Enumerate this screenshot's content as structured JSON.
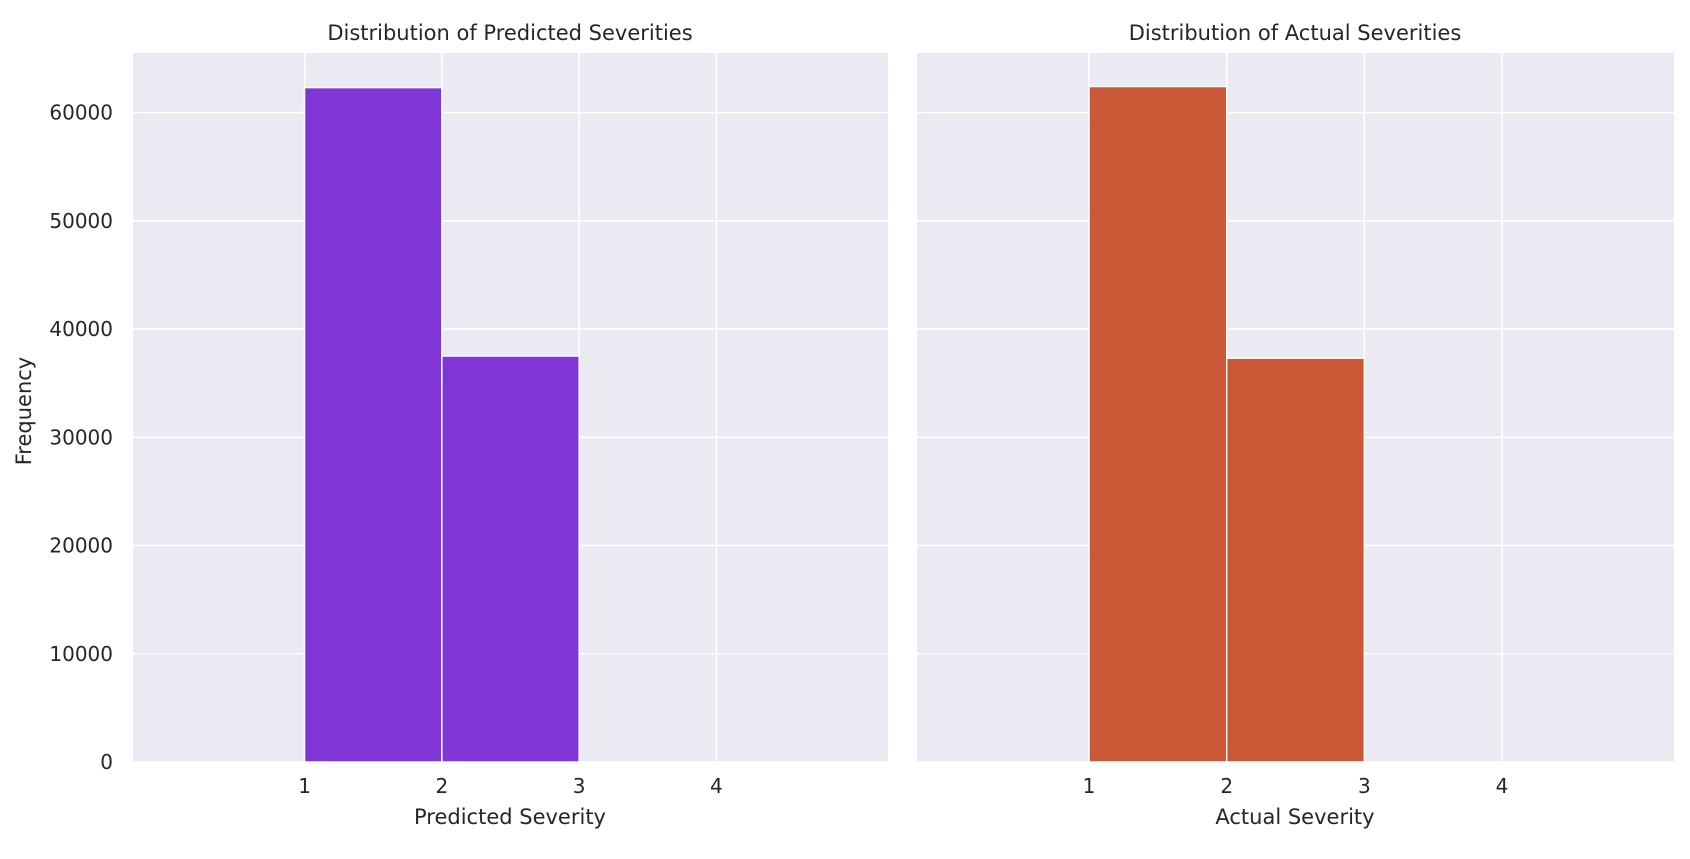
{
  "figure": {
    "ylabel": "Frequency"
  },
  "chart_data": [
    {
      "type": "bar",
      "title": "Distribution of Predicted Severities",
      "xlabel": "Predicted Severity",
      "ylabel": "Frequency",
      "bins": [
        [
          1,
          2
        ],
        [
          2,
          3
        ]
      ],
      "values": [
        62300,
        37500
      ],
      "color": "#7b2fd3",
      "xlim": [
        -0.25,
        5.25
      ],
      "ylim": [
        0,
        65500
      ],
      "xticks": [
        1,
        2,
        3,
        4
      ],
      "yticks": [
        0,
        10000,
        20000,
        30000,
        40000,
        50000,
        60000
      ],
      "grid": true
    },
    {
      "type": "bar",
      "title": "Distribution of Actual Severities",
      "xlabel": "Actual Severity",
      "ylabel": "",
      "bins": [
        [
          1,
          2
        ],
        [
          2,
          3
        ]
      ],
      "values": [
        62400,
        37300
      ],
      "color": "#c9532f",
      "xlim": [
        -0.25,
        5.25
      ],
      "ylim": [
        0,
        65500
      ],
      "xticks": [
        1,
        2,
        3,
        4
      ],
      "yticks": [
        0,
        10000,
        20000,
        30000,
        40000,
        50000,
        60000
      ],
      "grid": true
    }
  ]
}
